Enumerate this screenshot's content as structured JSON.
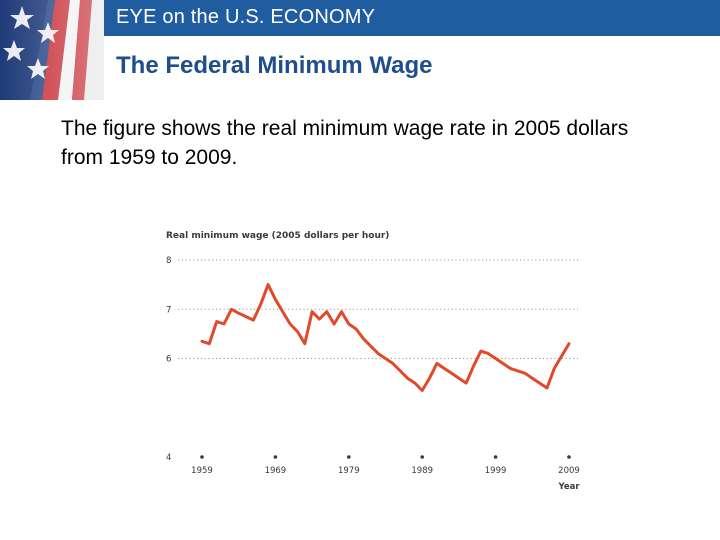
{
  "header": {
    "title": "EYE on the U.S. ECONOMY"
  },
  "slide": {
    "title": "The Federal Minimum Wage",
    "body": "The figure shows the real minimum wage rate in 2005 dollars from 1959 to 2009."
  },
  "colors": {
    "header_bar": "#1f5da0",
    "title": "#1f4e8c",
    "series": "#e04a2a",
    "grid": "#9a9a9a"
  },
  "chart_data": {
    "type": "line",
    "title": "Real minimum wage (2005 dollars per hour)",
    "xlabel": "Year",
    "ylabel": "",
    "xlim": [
      1959,
      2009
    ],
    "ylim": [
      4,
      8
    ],
    "xticks": [
      1959,
      1969,
      1979,
      1989,
      1999,
      2009
    ],
    "yticks": [
      4,
      6,
      7,
      8
    ],
    "grid": "dotted horizontal",
    "series": [
      {
        "name": "Real minimum wage",
        "x": [
          1959,
          1960,
          1961,
          1962,
          1963,
          1964,
          1965,
          1966,
          1967,
          1968,
          1969,
          1970,
          1971,
          1972,
          1973,
          1974,
          1975,
          1976,
          1977,
          1978,
          1979,
          1980,
          1981,
          1982,
          1983,
          1984,
          1985,
          1986,
          1987,
          1988,
          1989,
          1990,
          1991,
          1992,
          1993,
          1994,
          1995,
          1996,
          1997,
          1998,
          1999,
          2000,
          2001,
          2002,
          2003,
          2004,
          2005,
          2006,
          2007,
          2008,
          2009
        ],
        "values": [
          6.35,
          6.3,
          6.75,
          6.7,
          7.0,
          6.92,
          6.85,
          6.78,
          7.1,
          7.5,
          7.2,
          6.95,
          6.7,
          6.55,
          6.3,
          6.95,
          6.8,
          6.95,
          6.7,
          6.95,
          6.7,
          6.6,
          6.4,
          6.25,
          6.1,
          6.0,
          5.9,
          5.75,
          5.6,
          5.5,
          5.35,
          5.6,
          5.9,
          5.8,
          5.7,
          5.6,
          5.5,
          5.85,
          6.15,
          6.1,
          6.0,
          5.9,
          5.8,
          5.75,
          5.7,
          5.6,
          5.5,
          5.4,
          5.8,
          6.05,
          6.3
        ]
      }
    ]
  }
}
